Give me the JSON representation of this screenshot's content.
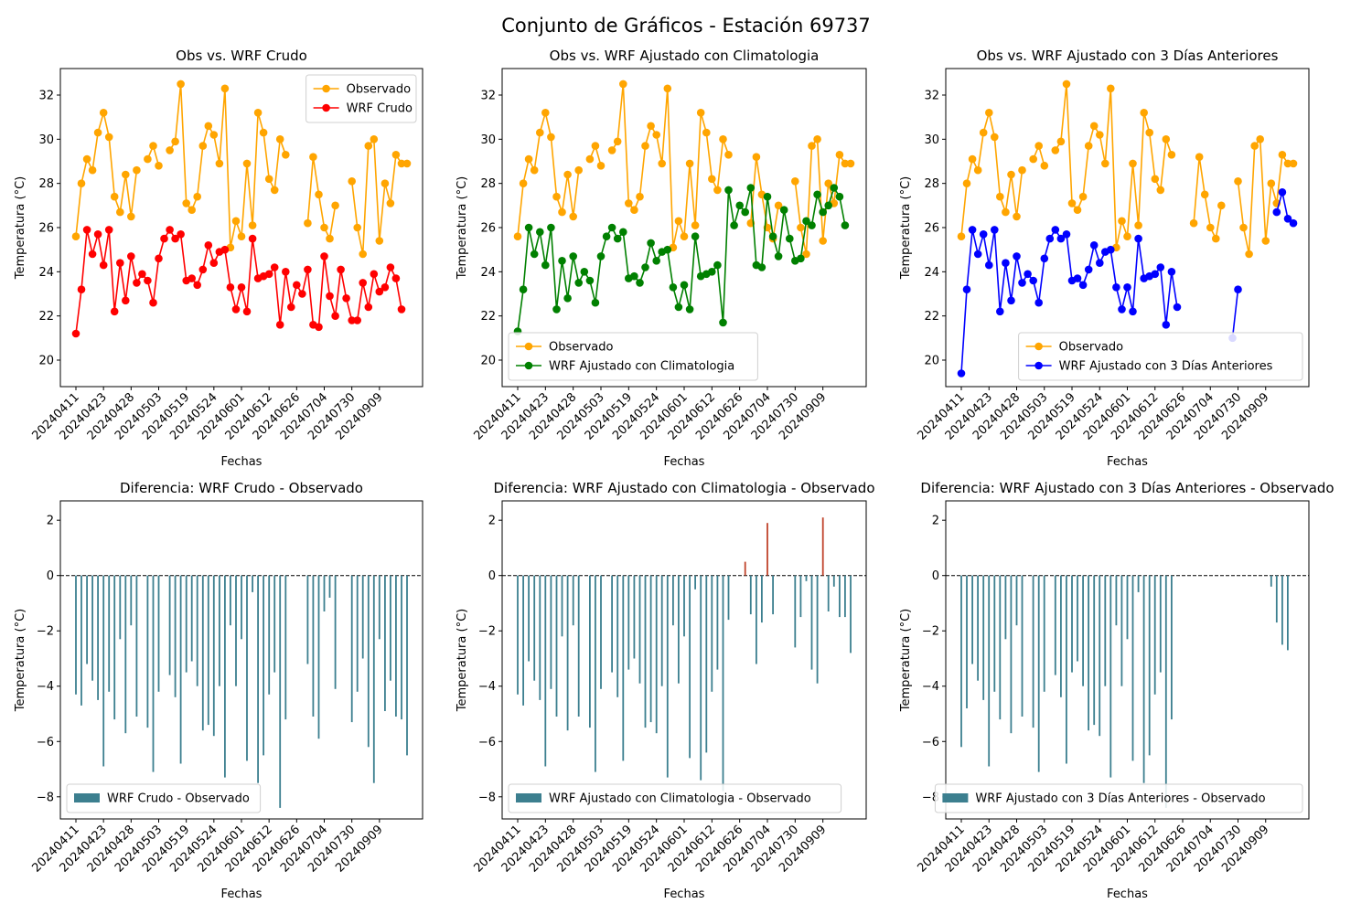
{
  "figure_title": "Conjunto de Gráficos - Estación 69737",
  "colors": {
    "observado": "#ffa500",
    "crudo": "#ff0000",
    "climatologia": "#008000",
    "anteriores": "#0000ff",
    "bar_negative": "#3c7f8f",
    "bar_positive": "#c0442c"
  },
  "x_tick_labels": [
    "20240411",
    "20240423",
    "20240428",
    "20240503",
    "20240519",
    "20240524",
    "20240601",
    "20240612",
    "20240626",
    "20240704",
    "20240730",
    "20240909"
  ],
  "chart_data": [
    {
      "type": "line",
      "title": "Obs vs. WRF Crudo",
      "xlabel": "Fechas",
      "ylabel": "Temperatura (°C)",
      "ylim": [
        18.8,
        33.2
      ],
      "yticks": [
        20,
        22,
        24,
        26,
        28,
        30,
        32
      ],
      "legend": "top-right",
      "series": [
        {
          "name": "Observado",
          "color": "#ffa500",
          "values": [
            25.6,
            28.0,
            29.1,
            28.6,
            30.3,
            31.2,
            30.1,
            27.4,
            26.7,
            28.4,
            26.5,
            28.6,
            null,
            29.1,
            29.7,
            28.8,
            null,
            29.5,
            29.9,
            32.5,
            27.1,
            26.8,
            27.4,
            29.7,
            30.6,
            30.2,
            28.9,
            32.3,
            25.1,
            26.3,
            25.6,
            28.9,
            26.1,
            31.2,
            30.3,
            28.2,
            27.7,
            30.0,
            29.3,
            null,
            null,
            null,
            26.2,
            29.2,
            27.5,
            26.0,
            25.5,
            27.0,
            null,
            null,
            28.1,
            26.0,
            24.8,
            29.7,
            30.0,
            25.4,
            28.0,
            27.1,
            29.3,
            28.9,
            28.9
          ]
        },
        {
          "name": "WRF Crudo",
          "color": "#ff0000",
          "values": [
            21.2,
            23.2,
            25.9,
            24.8,
            25.7,
            24.3,
            25.9,
            22.2,
            24.4,
            22.7,
            24.7,
            23.5,
            23.9,
            23.6,
            22.6,
            24.6,
            25.5,
            25.9,
            25.5,
            25.7,
            23.6,
            23.7,
            23.4,
            24.1,
            25.2,
            24.4,
            24.9,
            25.0,
            23.3,
            22.3,
            23.3,
            22.2,
            25.5,
            23.7,
            23.8,
            23.9,
            24.2,
            21.6,
            24.0,
            22.4,
            23.4,
            23.0,
            24.1,
            21.6,
            21.5,
            24.7,
            22.9,
            22.0,
            24.1,
            22.8,
            21.8,
            21.8,
            23.5,
            22.4,
            23.9,
            23.1,
            23.3,
            24.2,
            23.7,
            22.3,
            null
          ]
        }
      ]
    },
    {
      "type": "line",
      "title": "Obs vs. WRF Ajustado con Climatologia",
      "xlabel": "Fechas",
      "ylabel": "Temperatura (°C)",
      "ylim": [
        18.8,
        33.2
      ],
      "yticks": [
        20,
        22,
        24,
        26,
        28,
        30,
        32
      ],
      "legend": "bottom-left",
      "series": [
        {
          "name": "Observado",
          "color": "#ffa500",
          "values": [
            25.6,
            28.0,
            29.1,
            28.6,
            30.3,
            31.2,
            30.1,
            27.4,
            26.7,
            28.4,
            26.5,
            28.6,
            null,
            29.1,
            29.7,
            28.8,
            null,
            29.5,
            29.9,
            32.5,
            27.1,
            26.8,
            27.4,
            29.7,
            30.6,
            30.2,
            28.9,
            32.3,
            25.1,
            26.3,
            25.6,
            28.9,
            26.1,
            31.2,
            30.3,
            28.2,
            27.7,
            30.0,
            29.3,
            null,
            null,
            null,
            26.2,
            29.2,
            27.5,
            26.0,
            25.5,
            27.0,
            null,
            null,
            28.1,
            26.0,
            24.8,
            29.7,
            30.0,
            25.4,
            28.0,
            27.1,
            29.3,
            28.9,
            28.9
          ]
        },
        {
          "name": "WRF Ajustado con Climatologia",
          "color": "#008000",
          "values": [
            21.3,
            23.2,
            26.0,
            24.8,
            25.8,
            24.3,
            26.0,
            22.3,
            24.5,
            22.8,
            24.7,
            23.5,
            24.0,
            23.6,
            22.6,
            24.7,
            25.6,
            26.0,
            25.5,
            25.8,
            23.7,
            23.8,
            23.5,
            24.2,
            25.3,
            24.5,
            24.9,
            25.0,
            23.3,
            22.4,
            23.4,
            22.3,
            25.6,
            23.8,
            23.9,
            24.0,
            24.3,
            21.7,
            27.7,
            26.1,
            27.0,
            26.7,
            27.8,
            24.3,
            24.2,
            27.4,
            25.6,
            24.7,
            26.8,
            25.5,
            24.5,
            24.6,
            26.3,
            26.1,
            27.5,
            26.7,
            27.0,
            27.8,
            27.4,
            26.1,
            null
          ]
        }
      ]
    },
    {
      "type": "line",
      "title": "Obs vs. WRF Ajustado con 3 Días Anteriores",
      "xlabel": "Fechas",
      "ylabel": "Temperatura (°C)",
      "ylim": [
        18.8,
        33.2
      ],
      "yticks": [
        20,
        22,
        24,
        26,
        28,
        30,
        32
      ],
      "legend": "bottom-right",
      "series": [
        {
          "name": "Observado",
          "color": "#ffa500",
          "values": [
            25.6,
            28.0,
            29.1,
            28.6,
            30.3,
            31.2,
            30.1,
            27.4,
            26.7,
            28.4,
            26.5,
            28.6,
            null,
            29.1,
            29.7,
            28.8,
            null,
            29.5,
            29.9,
            32.5,
            27.1,
            26.8,
            27.4,
            29.7,
            30.6,
            30.2,
            28.9,
            32.3,
            25.1,
            26.3,
            25.6,
            28.9,
            26.1,
            31.2,
            30.3,
            28.2,
            27.7,
            30.0,
            29.3,
            null,
            null,
            null,
            26.2,
            29.2,
            27.5,
            26.0,
            25.5,
            27.0,
            null,
            null,
            28.1,
            26.0,
            24.8,
            29.7,
            30.0,
            25.4,
            28.0,
            27.1,
            29.3,
            28.9,
            28.9
          ]
        },
        {
          "name": "WRF Ajustado con 3 Días Anteriores",
          "color": "#0000ff",
          "values": [
            19.4,
            23.2,
            25.9,
            24.8,
            25.7,
            24.3,
            25.9,
            22.2,
            24.4,
            22.7,
            24.7,
            23.5,
            23.9,
            23.6,
            22.6,
            24.6,
            25.5,
            25.9,
            25.5,
            25.7,
            23.6,
            23.7,
            23.4,
            24.1,
            25.2,
            24.4,
            24.9,
            25.0,
            23.3,
            22.3,
            23.3,
            22.2,
            25.5,
            23.7,
            23.8,
            23.9,
            24.2,
            21.6,
            24.0,
            22.4,
            null,
            null,
            null,
            null,
            null,
            null,
            null,
            null,
            null,
            21.0,
            23.2,
            null,
            null,
            null,
            null,
            null,
            null,
            26.7,
            27.6,
            26.4,
            26.2
          ]
        }
      ]
    },
    {
      "type": "bar",
      "title": "Diferencia: WRF Crudo - Observado",
      "xlabel": "Fechas",
      "ylabel": "Temperatura (°C)",
      "ylim": [
        -8.8,
        2.7
      ],
      "yticks": [
        -8,
        -6,
        -4,
        -2,
        0,
        2
      ],
      "legend": "bottom-left",
      "series": [
        {
          "name": "WRF Crudo - Observado",
          "values": [
            -4.3,
            -4.7,
            -3.2,
            -3.8,
            -4.5,
            -6.9,
            -4.2,
            -5.2,
            -2.3,
            -5.7,
            -1.8,
            -5.1,
            null,
            -5.5,
            -7.1,
            -4.2,
            null,
            -3.6,
            -4.4,
            -6.8,
            -3.5,
            -3.1,
            -4.0,
            -5.6,
            -5.4,
            -5.8,
            -4.0,
            -7.3,
            -1.8,
            -4.0,
            -2.3,
            -6.7,
            -0.6,
            -7.5,
            -6.5,
            -4.3,
            -3.5,
            -8.4,
            -5.2,
            null,
            null,
            null,
            -3.2,
            -5.1,
            -5.9,
            -1.3,
            -0.8,
            -4.1,
            null,
            null,
            -5.3,
            -4.2,
            -3.0,
            -6.2,
            -7.5,
            -2.3,
            -4.9,
            -3.8,
            -5.1,
            -5.2,
            -6.5
          ]
        }
      ]
    },
    {
      "type": "bar",
      "title": "Diferencia: WRF Ajustado con Climatologia - Observado",
      "xlabel": "Fechas",
      "ylabel": "Temperatura (°C)",
      "ylim": [
        -8.8,
        2.7
      ],
      "yticks": [
        -8,
        -6,
        -4,
        -2,
        0,
        2
      ],
      "legend": "bottom-left",
      "series": [
        {
          "name": "WRF Ajustado con Climatologia - Observado",
          "values": [
            -4.3,
            -4.7,
            -3.1,
            -3.8,
            -4.5,
            -6.9,
            -4.1,
            -5.1,
            -2.2,
            -5.6,
            -1.8,
            -5.1,
            null,
            -5.5,
            -7.1,
            -4.1,
            null,
            -3.5,
            -4.4,
            -6.7,
            -3.4,
            -3.0,
            -3.9,
            -5.5,
            -5.3,
            -5.7,
            -4.0,
            -7.3,
            -1.8,
            -3.9,
            -2.2,
            -6.6,
            -0.5,
            -7.4,
            -6.4,
            -4.2,
            -3.4,
            -7.8,
            -1.6,
            null,
            null,
            0.5,
            -1.4,
            -3.2,
            -1.7,
            1.9,
            -1.4,
            null,
            null,
            null,
            -2.6,
            -1.5,
            -0.2,
            -3.4,
            -3.9,
            2.1,
            -1.3,
            -0.4,
            -1.5,
            -1.5,
            -2.8
          ]
        }
      ]
    },
    {
      "type": "bar",
      "title": "Diferencia: WRF Ajustado con 3 Días Anteriores - Observado",
      "xlabel": "Fechas",
      "ylabel": "Temperatura (°C)",
      "ylim": [
        -8.8,
        2.7
      ],
      "yticks": [
        -8,
        -6,
        -4,
        -2,
        0,
        2
      ],
      "legend": "bottom-right",
      "series": [
        {
          "name": "WRF Ajustado con 3 Días Anteriores - Observado",
          "values": [
            -6.2,
            -4.8,
            -3.2,
            -3.8,
            -4.5,
            -6.9,
            -4.2,
            -5.2,
            -2.3,
            -5.7,
            -1.8,
            -5.1,
            null,
            -5.5,
            -7.1,
            -4.2,
            null,
            -3.6,
            -4.4,
            -6.8,
            -3.5,
            -3.1,
            -4.0,
            -5.6,
            -5.4,
            -5.8,
            -4.0,
            -7.3,
            -1.8,
            -4.0,
            -2.3,
            -6.7,
            -0.6,
            -7.5,
            -6.5,
            -4.3,
            -3.5,
            -8.4,
            -5.2,
            null,
            null,
            null,
            null,
            null,
            null,
            null,
            null,
            null,
            null,
            null,
            null,
            null,
            null,
            null,
            null,
            null,
            -0.4,
            -1.7,
            -2.5,
            -2.7,
            null
          ]
        }
      ]
    }
  ]
}
